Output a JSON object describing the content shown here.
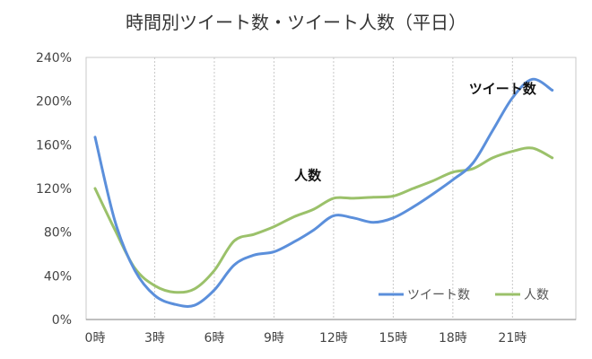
{
  "chart_data": {
    "type": "line",
    "title": "時間別ツイート数・ツイート人数（平日）",
    "x_tick_labels": [
      "0時",
      "3時",
      "6時",
      "9時",
      "12時",
      "15時",
      "18時",
      "21時"
    ],
    "y_tick_labels": [
      "0%",
      "40%",
      "80%",
      "120%",
      "160%",
      "200%",
      "240%"
    ],
    "ylim": [
      0,
      240
    ],
    "xlim": [
      0,
      23.5
    ],
    "y_unit": "%",
    "grid": {
      "x": true,
      "y": false,
      "style": "dotted"
    },
    "legend_position": "bottom-right",
    "series": [
      {
        "name": "ツイート数",
        "color": "#5b8fdb",
        "x": [
          0,
          1,
          2,
          3,
          4,
          5,
          6,
          7,
          8,
          9,
          10,
          11,
          12,
          13,
          14,
          15,
          16,
          17,
          18,
          19,
          20,
          21,
          22,
          23
        ],
        "values": [
          167,
          90,
          45,
          22,
          14,
          13,
          27,
          50,
          59,
          62,
          71,
          82,
          95,
          93,
          89,
          93,
          103,
          115,
          128,
          143,
          173,
          203,
          220,
          210
        ]
      },
      {
        "name": "人数",
        "color": "#9bc16a",
        "x": [
          0,
          1,
          2,
          3,
          4,
          5,
          6,
          7,
          8,
          9,
          10,
          11,
          12,
          13,
          14,
          15,
          16,
          17,
          18,
          19,
          20,
          21,
          22,
          23
        ],
        "values": [
          120,
          82,
          47,
          31,
          25,
          28,
          45,
          72,
          78,
          85,
          94,
          101,
          111,
          111,
          112,
          113,
          120,
          127,
          135,
          138,
          148,
          154,
          157,
          148
        ]
      }
    ],
    "annotations": [
      {
        "text": "ツイート数",
        "series": "ツイート数",
        "x": 20.5,
        "y": 207
      },
      {
        "text": "人数",
        "series": "人数",
        "x": 10.7,
        "y": 128
      }
    ]
  }
}
